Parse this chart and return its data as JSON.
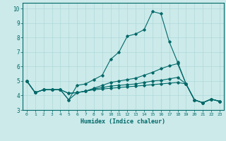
{
  "title": "",
  "xlabel": "Humidex (Indice chaleur)",
  "ylabel": "",
  "bg_color": "#cceaea",
  "grid_color_major": "#b0d8d8",
  "grid_color_minor": "#c0e4e4",
  "line_color": "#006868",
  "xlim": [
    -0.5,
    23.5
  ],
  "ylim": [
    3.0,
    10.4
  ],
  "xticks": [
    0,
    1,
    2,
    3,
    4,
    5,
    6,
    7,
    8,
    9,
    10,
    11,
    12,
    13,
    14,
    15,
    16,
    17,
    18,
    19,
    20,
    21,
    22,
    23
  ],
  "yticks": [
    3,
    4,
    5,
    6,
    7,
    8,
    9,
    10
  ],
  "curve1_x": [
    0,
    1,
    2,
    3,
    4,
    5,
    6,
    7,
    8,
    9,
    10,
    11,
    12,
    13,
    14,
    15,
    16,
    17,
    18,
    19,
    20,
    21,
    22,
    23
  ],
  "curve1_y": [
    5.0,
    4.2,
    4.4,
    4.4,
    4.4,
    3.7,
    4.7,
    4.8,
    5.1,
    5.4,
    6.5,
    7.0,
    8.1,
    8.25,
    8.55,
    9.8,
    9.65,
    7.7,
    6.3,
    4.8,
    3.7,
    3.5,
    3.75,
    3.6
  ],
  "curve2_x": [
    0,
    1,
    2,
    3,
    4,
    5,
    6,
    7,
    8,
    9,
    10,
    11,
    12,
    13,
    14,
    15,
    16,
    17,
    18,
    19,
    20,
    21,
    22,
    23
  ],
  "curve2_y": [
    5.0,
    4.2,
    4.4,
    4.4,
    4.4,
    3.7,
    4.2,
    4.3,
    4.5,
    4.7,
    4.9,
    5.0,
    5.1,
    5.2,
    5.4,
    5.6,
    5.85,
    6.05,
    6.2,
    4.8,
    3.7,
    3.5,
    3.75,
    3.6
  ],
  "curve3_x": [
    0,
    1,
    2,
    3,
    4,
    5,
    6,
    7,
    8,
    9,
    10,
    11,
    12,
    13,
    14,
    15,
    16,
    17,
    18,
    19,
    20,
    21,
    22,
    23
  ],
  "curve3_y": [
    5.0,
    4.2,
    4.4,
    4.4,
    4.4,
    4.15,
    4.2,
    4.3,
    4.45,
    4.55,
    4.65,
    4.7,
    4.75,
    4.8,
    4.9,
    5.0,
    5.05,
    5.15,
    5.25,
    4.8,
    3.7,
    3.5,
    3.75,
    3.6
  ],
  "curve4_x": [
    0,
    1,
    2,
    3,
    4,
    5,
    6,
    7,
    8,
    9,
    10,
    11,
    12,
    13,
    14,
    15,
    16,
    17,
    18,
    19,
    20,
    21,
    22,
    23
  ],
  "curve4_y": [
    5.0,
    4.2,
    4.4,
    4.4,
    4.4,
    4.15,
    4.2,
    4.3,
    4.4,
    4.45,
    4.5,
    4.55,
    4.6,
    4.65,
    4.7,
    4.75,
    4.8,
    4.85,
    4.9,
    4.8,
    3.7,
    3.5,
    3.75,
    3.6
  ]
}
